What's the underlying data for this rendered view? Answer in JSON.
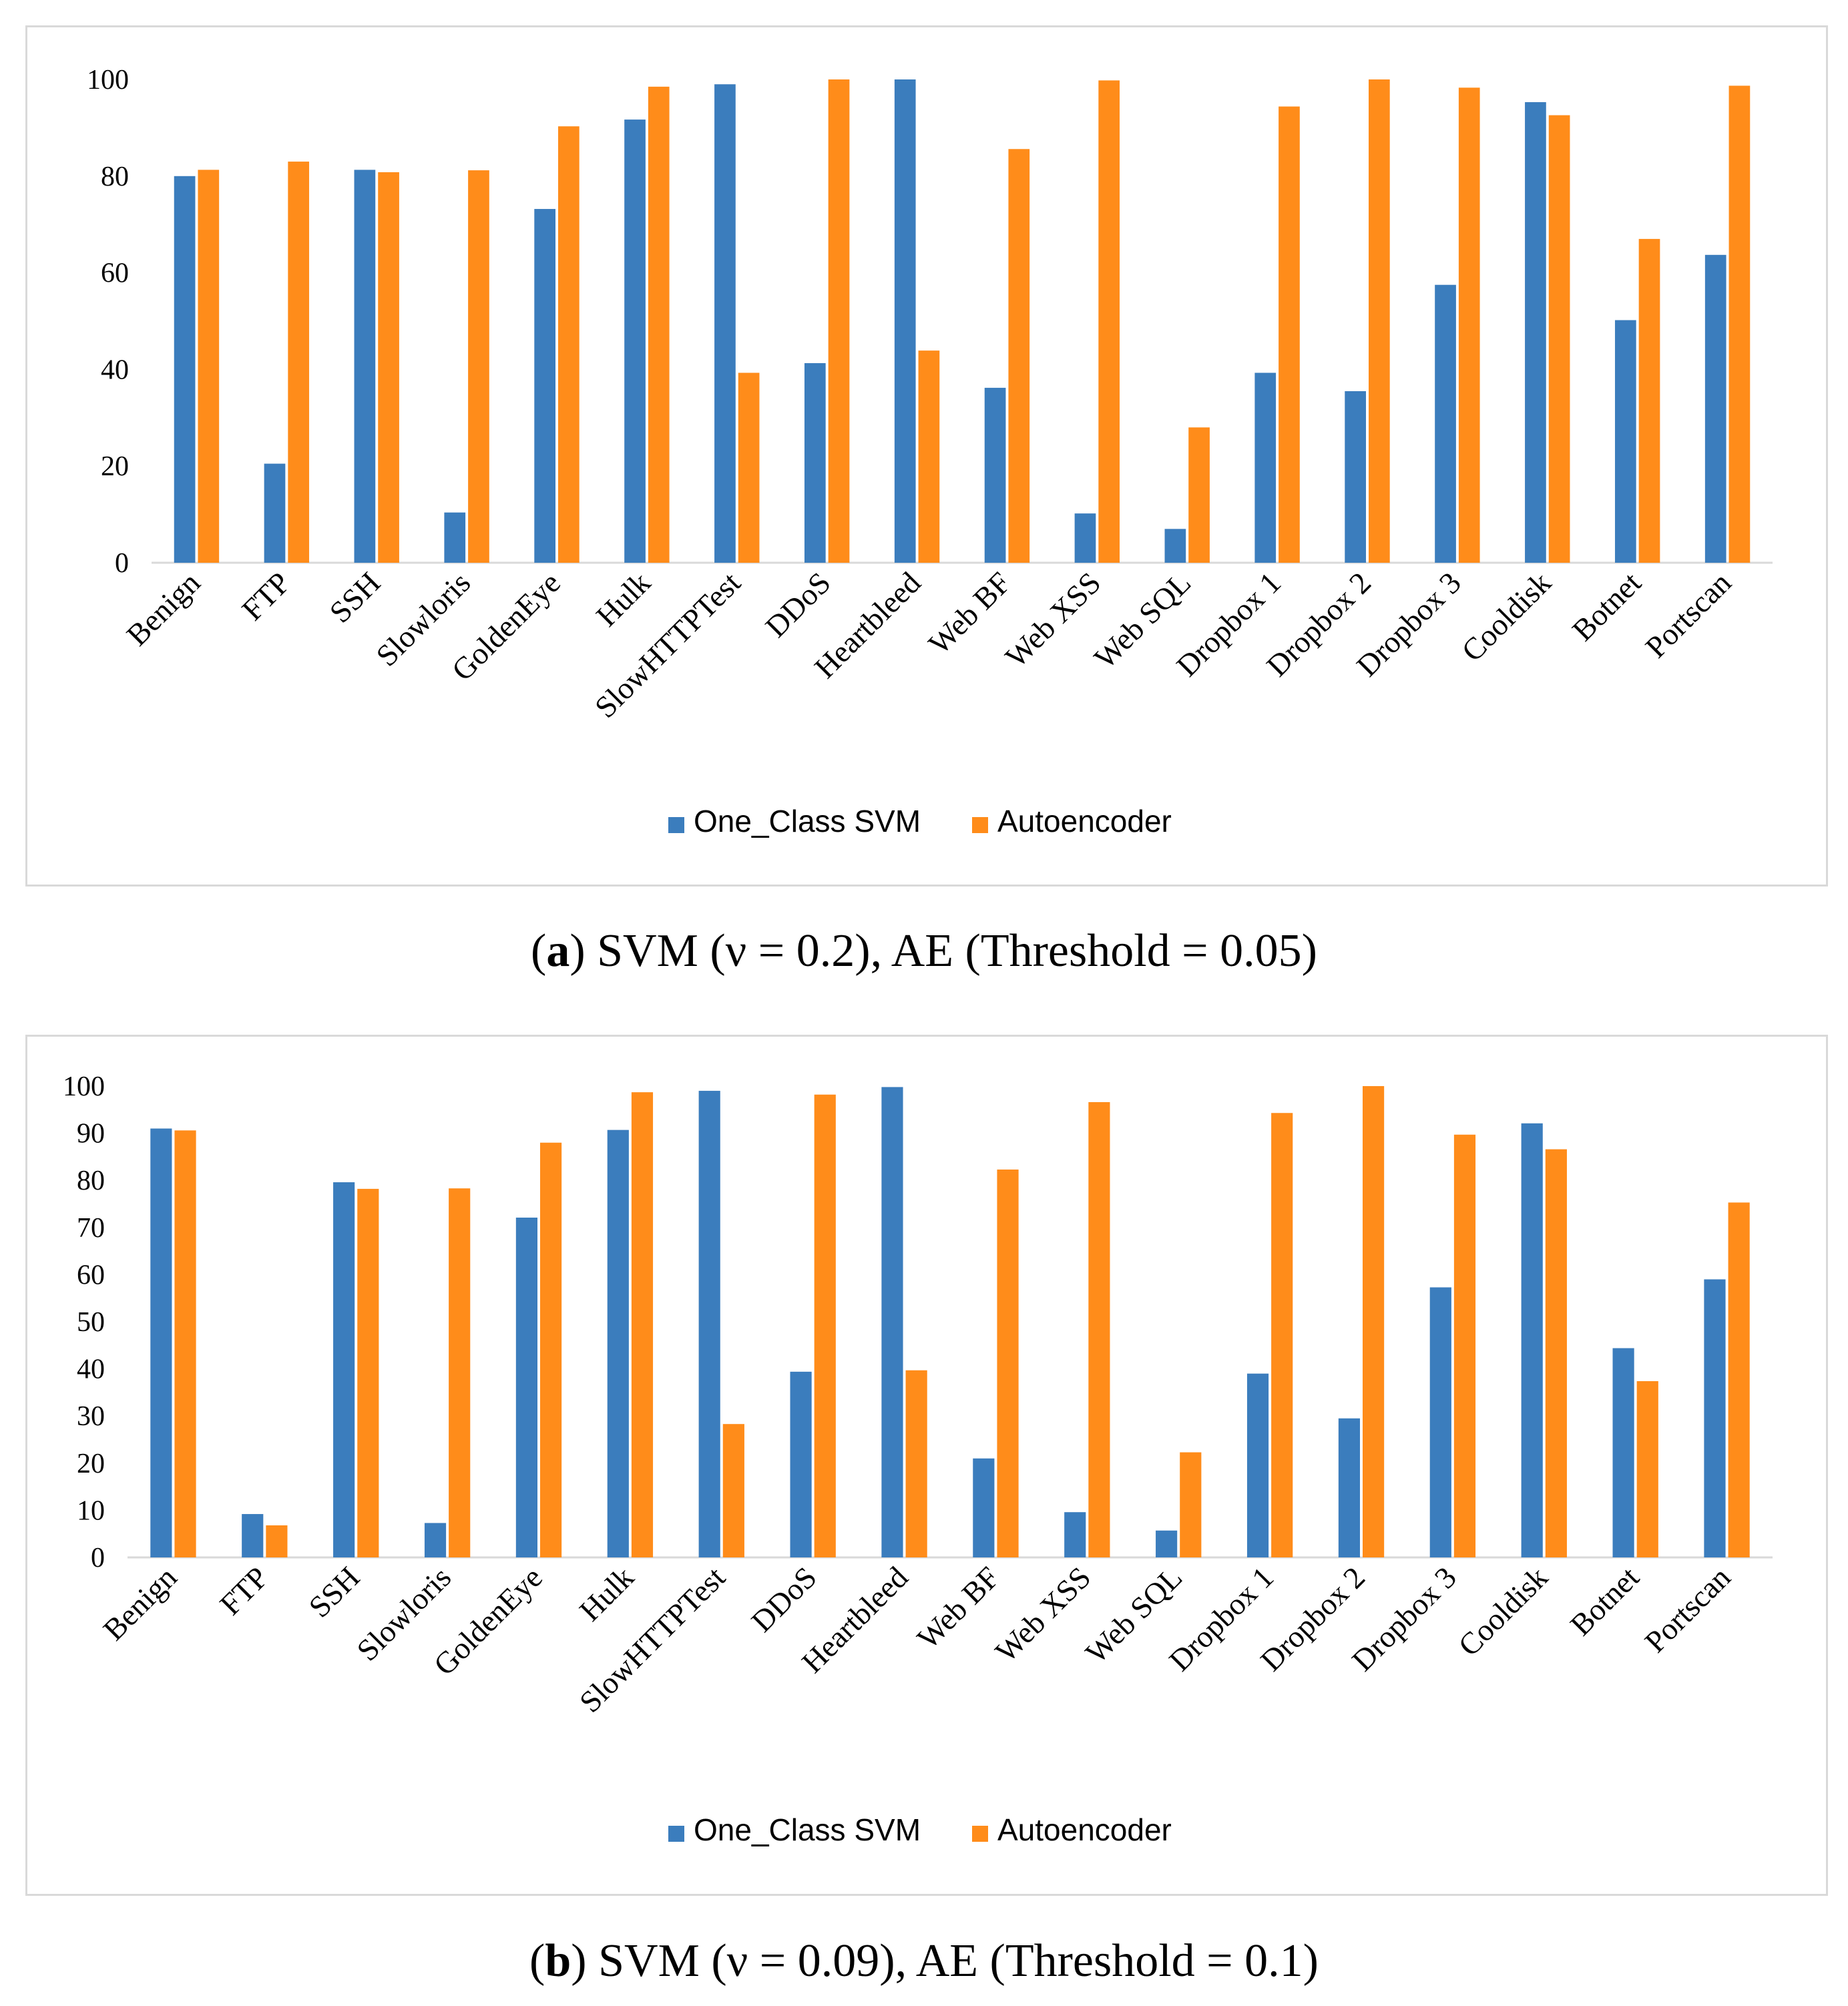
{
  "chart_data": [
    {
      "type": "bar",
      "panel": "a",
      "categories": [
        "Benign",
        "FTP",
        "SSH",
        "Slowloris",
        "GoldenEye",
        "Hulk",
        "SlowHTTPTest",
        "DDoS",
        "Heartbleed",
        "Web BF",
        "Web XSS",
        "Web SQL",
        "Dropbox 1",
        "Dropbox 2",
        "Dropbox 3",
        "Cooldisk",
        "Botnet",
        "Portscan"
      ],
      "series": [
        {
          "name": "One_Class SVM",
          "color": "#3b7dbd",
          "values": [
            80,
            20.5,
            81.3,
            10.4,
            73.2,
            91.7,
            99,
            41.3,
            100,
            36.2,
            10.2,
            7,
            39.3,
            35.5,
            57.5,
            95.3,
            50.2,
            63.7
          ]
        },
        {
          "name": "Autoencoder",
          "color": "#ff8c1a",
          "values": [
            81.3,
            83,
            80.8,
            81.2,
            90.3,
            98.5,
            39.3,
            100,
            43.9,
            85.6,
            99.8,
            28,
            94.4,
            100,
            98.3,
            92.6,
            67,
            98.7
          ]
        }
      ],
      "ylim": [
        0,
        100
      ],
      "yticks": [
        0,
        20,
        40,
        60,
        80,
        100
      ],
      "legend_position": "bottom-center",
      "caption_label": "a",
      "caption_text": "SVM (ν = 0.2), AE (Threshold = 0.05)"
    },
    {
      "type": "bar",
      "panel": "b",
      "categories": [
        "Benign",
        "FTP",
        "SSH",
        "Slowloris",
        "GoldenEye",
        "Hulk",
        "SlowHTTPTest",
        "DDoS",
        "Heartbleed",
        "Web BF",
        "Web XSS",
        "Web SQL",
        "Dropbox 1",
        "Dropbox 2",
        "Dropbox 3",
        "Cooldisk",
        "Botnet",
        "Portscan"
      ],
      "series": [
        {
          "name": "One_Class SVM",
          "color": "#3b7dbd",
          "values": [
            91,
            9.2,
            79.6,
            7.3,
            72.1,
            90.7,
            99,
            39.4,
            99.8,
            21,
            9.6,
            5.7,
            39,
            29.5,
            57.3,
            92.1,
            44.4,
            59
          ]
        },
        {
          "name": "Autoencoder",
          "color": "#ff8c1a",
          "values": [
            90.6,
            6.8,
            78.2,
            78.3,
            88,
            98.7,
            28.3,
            98.2,
            39.7,
            82.3,
            96.6,
            22.3,
            94.3,
            100,
            89.7,
            86.6,
            37.4,
            75.3
          ]
        }
      ],
      "ylim": [
        0,
        100
      ],
      "yticks": [
        0,
        10,
        20,
        30,
        40,
        50,
        60,
        70,
        80,
        90,
        100
      ],
      "legend_position": "bottom-center",
      "caption_label": "b",
      "caption_text": "SVM (ν = 0.09), AE (Threshold = 0.1)"
    }
  ]
}
